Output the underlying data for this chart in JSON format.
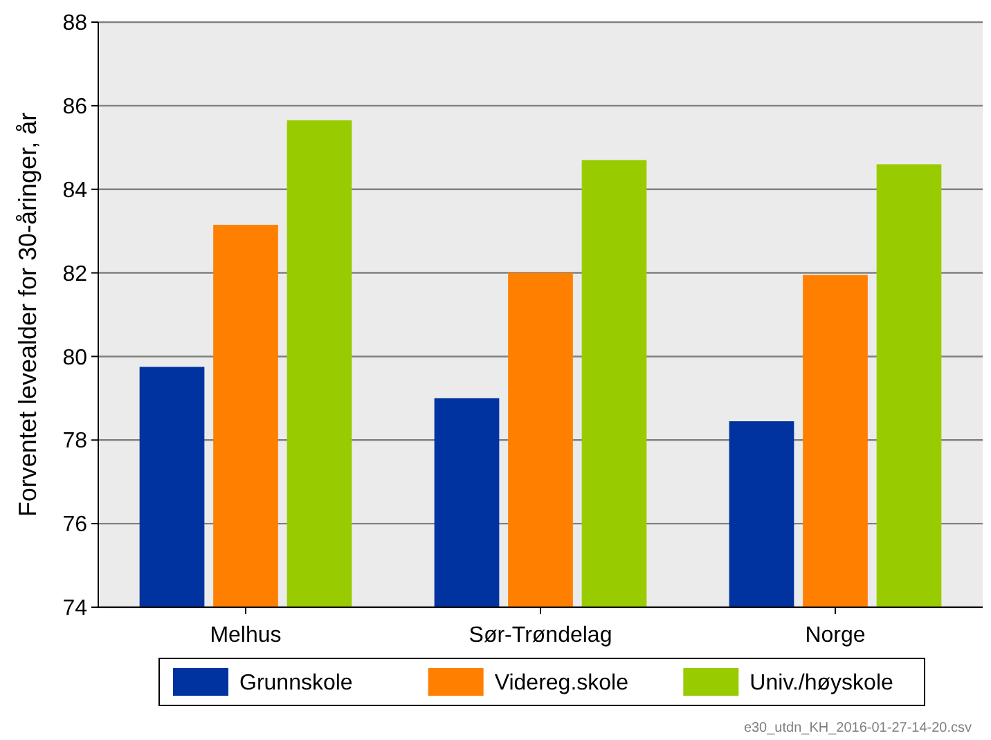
{
  "chart_data": {
    "type": "bar",
    "ylabel": "Forventet levealder for 30-åringer, år",
    "categories": [
      "Melhus",
      "Sør-Trøndelag",
      "Norge"
    ],
    "series": [
      {
        "name": "Grunnskole",
        "color": "#0033a0",
        "values": [
          79.75,
          79.0,
          78.45
        ]
      },
      {
        "name": "Videreg.skole",
        "color": "#ff8000",
        "values": [
          83.15,
          82.0,
          81.95
        ]
      },
      {
        "name": "Univ./høyskole",
        "color": "#99cc00",
        "values": [
          85.65,
          84.7,
          84.6
        ]
      }
    ],
    "ylim": [
      74,
      88
    ],
    "yticks": [
      74,
      76,
      78,
      80,
      82,
      84,
      86,
      88
    ],
    "grid": "y",
    "legend": "bottom",
    "annotations": [
      "e30_utdn_KH_2016-01-27-14-20.csv"
    ]
  }
}
